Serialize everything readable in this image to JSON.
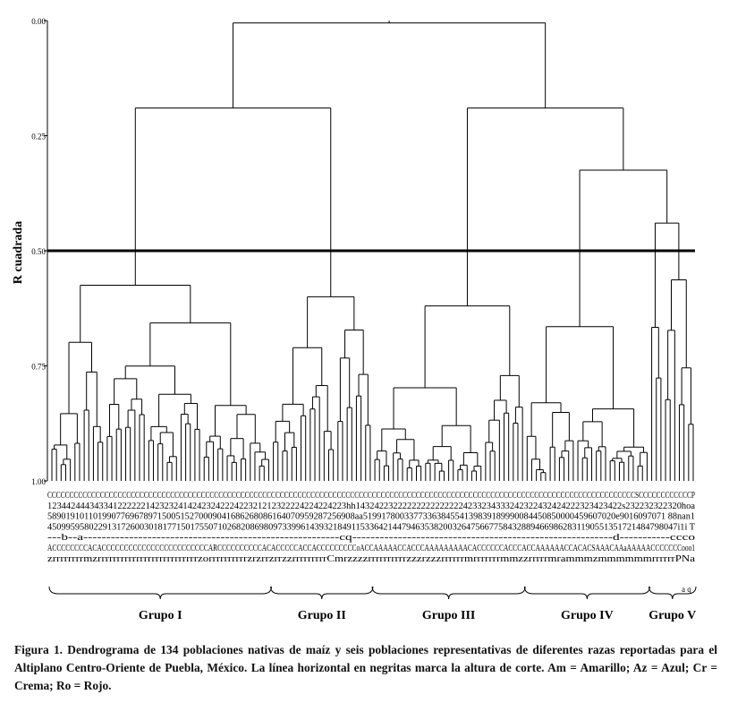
{
  "chart_data": {
    "type": "dendrogram",
    "ylabel": "R cuadrada",
    "ylim": [
      0,
      1
    ],
    "y_axis_inverted": true,
    "yticks": [
      {
        "value": 0.0,
        "label": "0.00"
      },
      {
        "value": 0.25,
        "label": "0.25"
      },
      {
        "value": 0.5,
        "label": "0.50"
      },
      {
        "value": 0.75,
        "label": "0.75"
      },
      {
        "value": 1.0,
        "label": "1.00"
      }
    ],
    "cut_height": 0.5,
    "leaf_count": 140,
    "top_merges": [
      {
        "name": "root",
        "height": 0.005,
        "children": [
          "Grupo I + Grupo II",
          "Grupos III, IV, V"
        ]
      },
      {
        "name": "Grupo I + Grupo II",
        "height": 0.19,
        "children": [
          "Grupo I",
          "Grupo II"
        ]
      },
      {
        "name": "Grupos III, IV, V",
        "height": 0.19,
        "children": [
          "Grupo III",
          "Grupos IV, V"
        ]
      },
      {
        "name": "Grupos IV, V",
        "height": 0.325,
        "children": [
          "Grupo IV",
          "Grupo V"
        ]
      },
      {
        "name": "Grupo I",
        "height": 0.575,
        "n_leaves": 48
      },
      {
        "name": "Grupo II",
        "height": 0.6,
        "n_leaves": 22
      },
      {
        "name": "Grupo III",
        "height": 0.62,
        "n_leaves": 33
      },
      {
        "name": "Grupo IV",
        "height": 0.665,
        "n_leaves": 27
      },
      {
        "name": "Grupo V",
        "height": 0.44,
        "n_leaves": 10
      }
    ],
    "groups": [
      {
        "label": "Grupo I",
        "n_leaves": 48
      },
      {
        "label": "Grupo II",
        "n_leaves": 22
      },
      {
        "label": "Grupo III",
        "n_leaves": 33
      },
      {
        "label": "Grupo IV",
        "n_leaves": 27
      },
      {
        "label": "Grupo V",
        "n_leaves": 10
      }
    ],
    "leaf_label_rows": [
      "CCCCCCCCCCCCCCCCCCCCCCCCCCCCCCCCCCCCCCCCCCCCCCCCCCCCCCCCCCCCCCCCCCCCCCCCCCCCCCCCCCCCCCCCCCCCCCCCCCCCCCCCCCCCCCCCCCCCCCCCCCCCCCCCCCCCCCSCCCCCCCCCCCCP",
      "1234424443433412222221423232414242324222422321212322224224224223hh143242232222222222222224233234333242322432424222323423422s232232322320hoa",
      "5890191011019907769678971500515270009041686268086164070959287256908aa5199178003377336384554139839189990084450850000459607020e9016097071 88nan1",
      "45099595802291317260030181771501755071026820869809733996143932184911533642144794635382003264756677584328894669862831190551351721484798047i1i T",
      "---b--a--------------------------------------------------------cq---------------------------------------------------------d-----------ccco",
      "ACCCCCCCCACACCCCCCCCCCCCCCCCCCCCCCCCARCCCCCCCCCCACACCCCCACCACCCCCCCCCoACCAAAAACCACCCAAAAAAAAACACCCCCCACCCACCAAAAAACCACACSAAACAAaAAAAACCCCCCCooo1",
      "zrrrrrrrrmzrrrrrrrrrrrrrrrrrrrrrrrrrrzorrrrrrrrrrzrzrrzrrzzrrrrrrrrrCmrzzzzrrrrrrrrrrzzzrzzzrrrrrrmrrrrrrrmmzzrrrrrmrammmzmmmmmmrrrrrrPNa"
    ],
    "leaf_label_extra": "a q"
  },
  "caption": {
    "label": "Figura 1.",
    "text": "Dendrograma de 134 poblaciones nativas de maíz y seis poblaciones representativas de diferentes razas reportadas para el Altiplano Centro-Oriente de Puebla, México. La línea horizontal en negritas marca la altura de corte. Am = Amarillo; Az = Azul; Cr = Crema; Ro = Rojo."
  }
}
